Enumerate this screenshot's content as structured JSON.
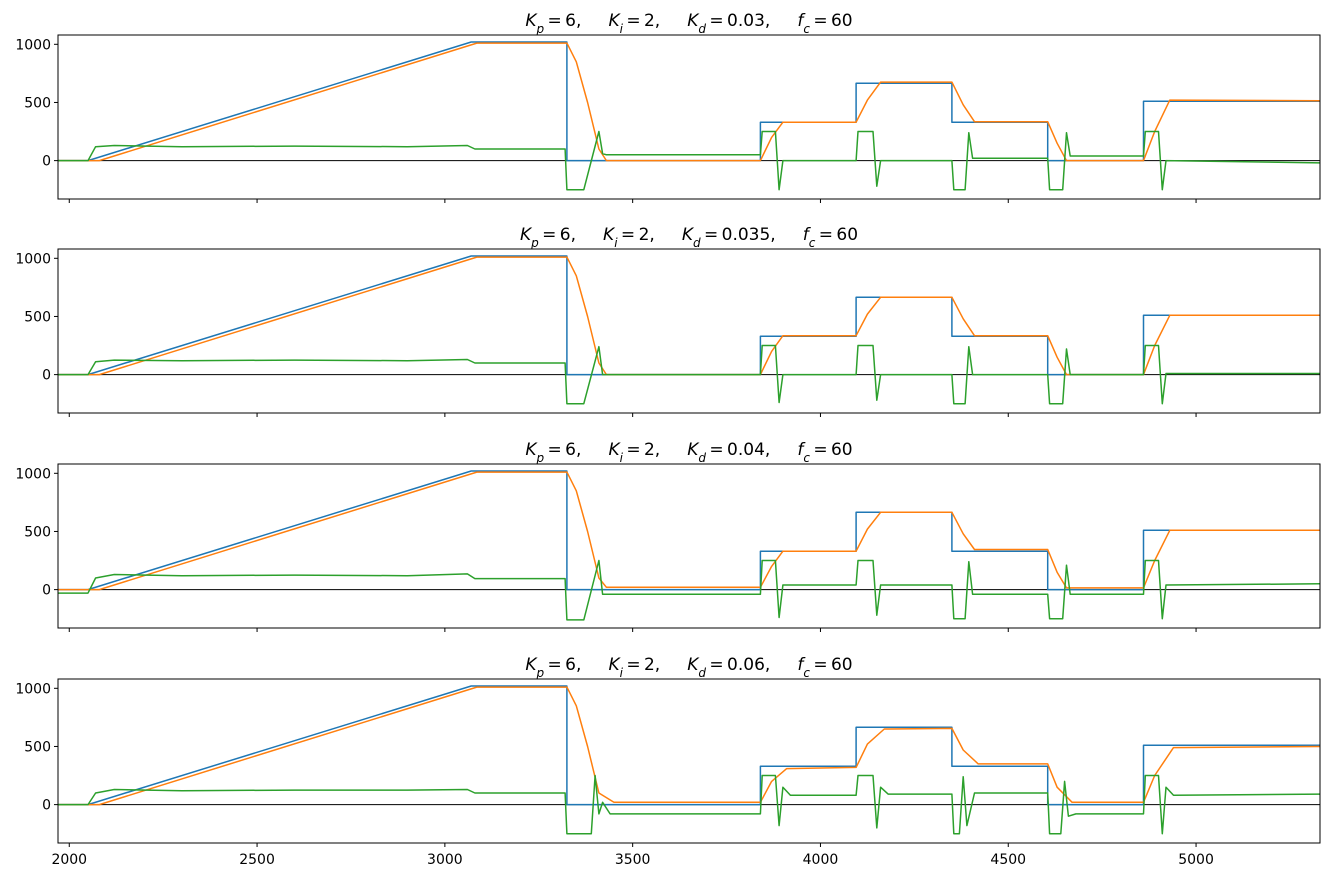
{
  "chart_data": [
    {
      "type": "line",
      "params": {
        "kp": "6",
        "ki": "2",
        "kd": "0.03",
        "fc": "60"
      },
      "xlim": [
        1970,
        5330
      ],
      "ylim": [
        -330,
        1080
      ],
      "yticks": [
        0,
        500,
        1000
      ],
      "xticks": [
        2000,
        2500,
        3000,
        3500,
        4000,
        4500,
        5000
      ],
      "show_xtick_labels": false,
      "zero_line": true,
      "series": [
        {
          "color": "#1f77b4",
          "x": [
            1970,
            2050,
            3070,
            3325,
            3325,
            3840,
            3840,
            4095,
            4095,
            4350,
            4350,
            4605,
            4605,
            4860,
            4860,
            5330
          ],
          "y": [
            0,
            0,
            1020,
            1020,
            0,
            0,
            330,
            330,
            665,
            665,
            330,
            330,
            0,
            0,
            510,
            510
          ]
        },
        {
          "color": "#ff7f0e",
          "x": [
            1970,
            2080,
            3085,
            3325,
            3350,
            3380,
            3410,
            3430,
            3840,
            3870,
            3900,
            4095,
            4125,
            4160,
            4350,
            4380,
            4410,
            4605,
            4630,
            4655,
            4860,
            4890,
            4930,
            5330
          ],
          "y": [
            0,
            0,
            1010,
            1010,
            850,
            500,
            100,
            0,
            0,
            200,
            330,
            330,
            520,
            675,
            675,
            480,
            335,
            335,
            150,
            0,
            0,
            250,
            520,
            515
          ]
        },
        {
          "color": "#2ca02c",
          "x": [
            1970,
            2050,
            2070,
            2120,
            2300,
            2600,
            2900,
            3060,
            3080,
            3320,
            3325,
            3370,
            3410,
            3420,
            3430,
            3840,
            3845,
            3880,
            3890,
            3900,
            4095,
            4100,
            4140,
            4150,
            4160,
            4350,
            4355,
            4385,
            4395,
            4405,
            4605,
            4610,
            4645,
            4655,
            4665,
            4860,
            4865,
            4900,
            4910,
            4920,
            5330
          ],
          "y": [
            0,
            0,
            120,
            130,
            120,
            125,
            120,
            130,
            100,
            100,
            -250,
            -250,
            250,
            60,
            50,
            50,
            250,
            250,
            -250,
            0,
            0,
            250,
            250,
            -220,
            0,
            0,
            -250,
            -250,
            240,
            20,
            20,
            -250,
            -250,
            240,
            40,
            40,
            250,
            250,
            -250,
            0,
            -20
          ]
        }
      ]
    },
    {
      "type": "line",
      "params": {
        "kp": "6",
        "ki": "2",
        "kd": "0.035",
        "fc": "60"
      },
      "xlim": [
        1970,
        5330
      ],
      "ylim": [
        -330,
        1080
      ],
      "yticks": [
        0,
        500,
        1000
      ],
      "xticks": [
        2000,
        2500,
        3000,
        3500,
        4000,
        4500,
        5000
      ],
      "show_xtick_labels": false,
      "zero_line": true,
      "series": [
        {
          "color": "#1f77b4",
          "x": [
            1970,
            2050,
            3070,
            3325,
            3325,
            3840,
            3840,
            4095,
            4095,
            4350,
            4350,
            4605,
            4605,
            4860,
            4860,
            5330
          ],
          "y": [
            0,
            0,
            1020,
            1020,
            0,
            0,
            330,
            330,
            665,
            665,
            330,
            330,
            0,
            0,
            510,
            510
          ]
        },
        {
          "color": "#ff7f0e",
          "x": [
            1970,
            2080,
            3085,
            3325,
            3350,
            3380,
            3410,
            3430,
            3840,
            3870,
            3900,
            4095,
            4125,
            4160,
            4350,
            4380,
            4410,
            4605,
            4630,
            4655,
            4860,
            4890,
            4930,
            5330
          ],
          "y": [
            0,
            0,
            1010,
            1010,
            850,
            500,
            100,
            0,
            0,
            200,
            335,
            335,
            520,
            665,
            665,
            480,
            335,
            335,
            150,
            0,
            0,
            250,
            510,
            510
          ]
        },
        {
          "color": "#2ca02c",
          "x": [
            1970,
            2050,
            2070,
            2120,
            2300,
            2600,
            2900,
            3060,
            3080,
            3320,
            3325,
            3370,
            3410,
            3420,
            3430,
            3840,
            3845,
            3880,
            3890,
            3900,
            4095,
            4100,
            4140,
            4150,
            4160,
            4350,
            4355,
            4385,
            4395,
            4405,
            4605,
            4610,
            4645,
            4655,
            4665,
            4860,
            4865,
            4900,
            4910,
            4920,
            5330
          ],
          "y": [
            0,
            0,
            110,
            125,
            120,
            125,
            120,
            130,
            100,
            100,
            -250,
            -250,
            240,
            0,
            0,
            0,
            250,
            250,
            -240,
            0,
            0,
            250,
            250,
            -220,
            0,
            0,
            -250,
            -250,
            240,
            0,
            0,
            -250,
            -250,
            220,
            0,
            0,
            250,
            250,
            -250,
            10,
            10
          ]
        }
      ]
    },
    {
      "type": "line",
      "params": {
        "kp": "6",
        "ki": "2",
        "kd": "0.04",
        "fc": "60"
      },
      "xlim": [
        1970,
        5330
      ],
      "ylim": [
        -330,
        1080
      ],
      "yticks": [
        0,
        500,
        1000
      ],
      "xticks": [
        2000,
        2500,
        3000,
        3500,
        4000,
        4500,
        5000
      ],
      "show_xtick_labels": false,
      "zero_line": true,
      "series": [
        {
          "color": "#1f77b4",
          "x": [
            1970,
            2050,
            3070,
            3325,
            3325,
            3840,
            3840,
            4095,
            4095,
            4350,
            4350,
            4605,
            4605,
            4860,
            4860,
            5330
          ],
          "y": [
            0,
            0,
            1020,
            1020,
            0,
            0,
            330,
            330,
            665,
            665,
            330,
            330,
            0,
            0,
            510,
            510
          ]
        },
        {
          "color": "#ff7f0e",
          "x": [
            1970,
            2080,
            3085,
            3325,
            3350,
            3380,
            3410,
            3430,
            3840,
            3870,
            3900,
            4095,
            4125,
            4160,
            4350,
            4380,
            4410,
            4605,
            4630,
            4655,
            4860,
            4890,
            4930,
            5330
          ],
          "y": [
            0,
            0,
            1010,
            1010,
            850,
            500,
            100,
            20,
            20,
            200,
            330,
            330,
            520,
            665,
            665,
            480,
            345,
            345,
            150,
            15,
            15,
            250,
            510,
            510
          ]
        },
        {
          "color": "#2ca02c",
          "x": [
            1970,
            2050,
            2070,
            2120,
            2300,
            2600,
            2900,
            3060,
            3080,
            3320,
            3325,
            3370,
            3410,
            3420,
            3430,
            3840,
            3845,
            3880,
            3890,
            3900,
            4095,
            4100,
            4140,
            4150,
            4160,
            4350,
            4355,
            4385,
            4395,
            4405,
            4605,
            4610,
            4645,
            4655,
            4665,
            4860,
            4865,
            4900,
            4910,
            4920,
            5330
          ],
          "y": [
            -30,
            -30,
            100,
            130,
            120,
            125,
            120,
            135,
            95,
            95,
            -260,
            -260,
            250,
            -40,
            -40,
            -40,
            250,
            250,
            -240,
            40,
            40,
            250,
            250,
            -220,
            40,
            40,
            -250,
            -250,
            240,
            -40,
            -40,
            -250,
            -250,
            210,
            -40,
            -40,
            250,
            250,
            -250,
            40,
            50
          ]
        }
      ]
    },
    {
      "type": "line",
      "params": {
        "kp": "6",
        "ki": "2",
        "kd": "0.06",
        "fc": "60"
      },
      "xlim": [
        1970,
        5330
      ],
      "ylim": [
        -330,
        1080
      ],
      "yticks": [
        0,
        500,
        1000
      ],
      "xticks": [
        2000,
        2500,
        3000,
        3500,
        4000,
        4500,
        5000
      ],
      "show_xtick_labels": true,
      "zero_line": true,
      "series": [
        {
          "color": "#1f77b4",
          "x": [
            1970,
            2050,
            3070,
            3325,
            3325,
            3840,
            3840,
            4095,
            4095,
            4350,
            4350,
            4605,
            4605,
            4860,
            4860,
            5330
          ],
          "y": [
            0,
            0,
            1020,
            1020,
            0,
            0,
            330,
            330,
            665,
            665,
            330,
            330,
            0,
            0,
            510,
            510
          ]
        },
        {
          "color": "#ff7f0e",
          "x": [
            1970,
            2080,
            3085,
            3325,
            3350,
            3380,
            3410,
            3450,
            3840,
            3870,
            3910,
            4095,
            4125,
            4170,
            4350,
            4380,
            4420,
            4605,
            4630,
            4670,
            4860,
            4890,
            4940,
            5330
          ],
          "y": [
            0,
            0,
            1010,
            1010,
            850,
            500,
            100,
            20,
            20,
            200,
            310,
            320,
            520,
            650,
            655,
            470,
            350,
            350,
            150,
            20,
            20,
            250,
            490,
            500
          ]
        },
        {
          "color": "#2ca02c",
          "x": [
            1970,
            2050,
            2070,
            2120,
            2300,
            2600,
            2900,
            3060,
            3080,
            3320,
            3325,
            3390,
            3400,
            3410,
            3420,
            3440,
            3840,
            3845,
            3880,
            3890,
            3900,
            3920,
            4095,
            4100,
            4140,
            4150,
            4160,
            4180,
            4350,
            4355,
            4370,
            4380,
            4390,
            4410,
            4605,
            4610,
            4640,
            4650,
            4660,
            4680,
            4860,
            4865,
            4900,
            4910,
            4920,
            4940,
            5330
          ],
          "y": [
            0,
            0,
            100,
            130,
            120,
            125,
            125,
            130,
            100,
            100,
            -250,
            -250,
            250,
            -80,
            20,
            -80,
            -80,
            250,
            250,
            -180,
            150,
            80,
            80,
            250,
            250,
            -200,
            150,
            90,
            90,
            -250,
            -250,
            240,
            -180,
            100,
            100,
            -250,
            -250,
            200,
            -100,
            -80,
            -80,
            250,
            250,
            -250,
            150,
            80,
            90
          ]
        }
      ]
    }
  ]
}
